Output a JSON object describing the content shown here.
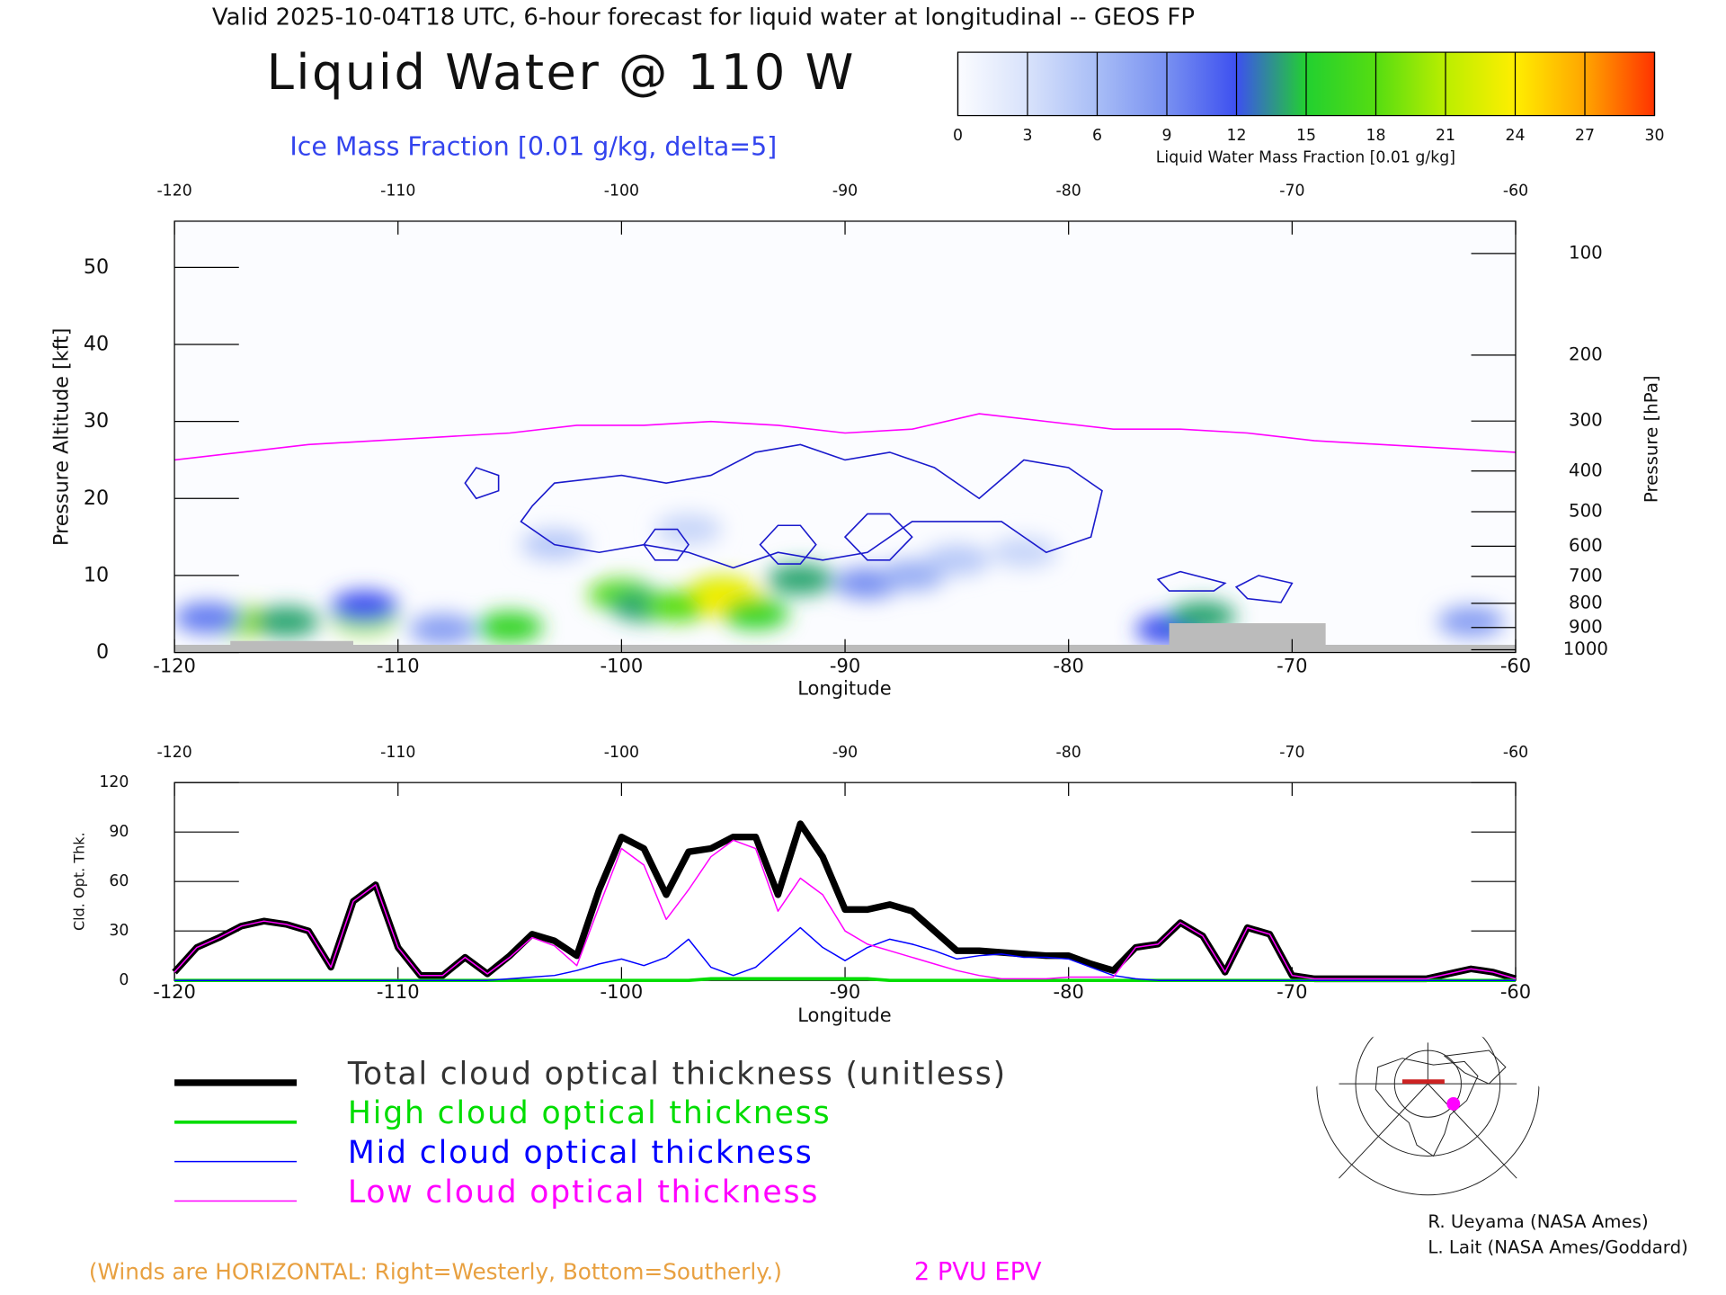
{
  "header": {
    "title": "Valid 2025-10-04T18 UTC, 6-hour forecast for liquid water at longitudinal -- GEOS FP"
  },
  "chart_data": [
    {
      "type": "cross-section",
      "title": "Liquid Water @ 110 W",
      "subtitle": "Ice Mass Fraction [0.01 g/kg, delta=5]",
      "xlabel": "Longitude",
      "ylabel": "Pressure Altitude [kft]",
      "y2label": "Pressure [hPa]",
      "xlim": [
        -120,
        -60
      ],
      "xticks": [
        -120,
        -110,
        -100,
        -90,
        -80,
        -70,
        -60
      ],
      "ylim": [
        0,
        56
      ],
      "yticks": [
        0,
        10,
        20,
        30,
        40,
        50
      ],
      "y2scale": "pressure-altitude",
      "y2ticks": [
        100,
        200,
        300,
        400,
        500,
        600,
        700,
        800,
        900,
        1000
      ],
      "colorbar": {
        "label": "Liquid Water Mass Fraction [0.01 g/kg]",
        "ticks": [
          0,
          3,
          6,
          9,
          12,
          15,
          18,
          21,
          24,
          27,
          30
        ],
        "colors": [
          "#fbfcff",
          "#d8e2fb",
          "#a8bdf6",
          "#7890f1",
          "#3d50f0",
          "#22d030",
          "#55dd11",
          "#bbee00",
          "#ffee00",
          "#ffa500",
          "#ff3300"
        ]
      },
      "liquid_water": {
        "x": [
          -117,
          -115,
          -118.5,
          -111.5,
          -111.5,
          -105,
          -100,
          -99,
          -97.5,
          -95.5,
          -95,
          -94,
          -92,
          -89,
          -87,
          -85,
          -82,
          -75.5,
          -74,
          -62,
          -103,
          -97,
          -108
        ],
        "y": [
          4,
          4,
          4.5,
          4.5,
          6,
          3.3,
          7.5,
          6,
          6,
          8,
          6.5,
          5,
          9.5,
          9,
          10,
          12,
          13,
          3,
          4.7,
          4,
          14,
          16,
          3
        ],
        "values": [
          20,
          14,
          10,
          20,
          12,
          16,
          18,
          14,
          18,
          22,
          24,
          16,
          14,
          9,
          7,
          5,
          4,
          12,
          14,
          8,
          5,
          4,
          8
        ]
      },
      "ice_contours": {
        "level": 5,
        "color": "#1a1acc",
        "lines": [
          {
            "x": [
              -104,
              -103,
              -100,
              -98,
              -96,
              -94,
              -92,
              -90,
              -88,
              -86,
              -84,
              -82,
              -80,
              -78.5,
              -79,
              -81,
              -83,
              -85,
              -87,
              -89,
              -91,
              -93,
              -95,
              -97,
              -99,
              -101,
              -103,
              -104.5
            ],
            "y": [
              19,
              22,
              23,
              22,
              23,
              26,
              27,
              25,
              26,
              24,
              20,
              25,
              24,
              21,
              15,
              13,
              17,
              17,
              17,
              13,
              12,
              13,
              11,
              13,
              14,
              13,
              14,
              17
            ]
          },
          {
            "x": [
              -99,
              -98.5,
              -97.5,
              -97,
              -97.5,
              -98.5
            ],
            "y": [
              14,
              16,
              16,
              14,
              12,
              12
            ]
          },
          {
            "x": [
              -93.8,
              -93,
              -92,
              -91.3,
              -92,
              -93
            ],
            "y": [
              14,
              16.5,
              16.5,
              14,
              11.5,
              11.5
            ]
          },
          {
            "x": [
              -90,
              -89,
              -88,
              -87,
              -88,
              -89
            ],
            "y": [
              15,
              18,
              18,
              15,
              12,
              12
            ]
          },
          {
            "x": [
              -107,
              -106.5,
              -105.5,
              -105.5,
              -106.5
            ],
            "y": [
              22,
              24,
              23,
              21,
              20
            ]
          },
          {
            "x": [
              -76,
              -75,
              -73,
              -73.5,
              -75.5
            ],
            "y": [
              9.5,
              10.5,
              9,
              8,
              8
            ]
          },
          {
            "x": [
              -72.5,
              -71.5,
              -70,
              -70.5,
              -72
            ],
            "y": [
              8.5,
              10,
              9,
              6.5,
              7
            ]
          }
        ]
      },
      "terrain": {
        "color": "#bbbbbb",
        "x": [
          -120,
          -117.5,
          -117.5,
          -112,
          -112,
          -75.5,
          -75.5,
          -68.5,
          -68.5,
          -60
        ],
        "y": [
          1,
          1,
          1.5,
          1.5,
          1,
          1,
          3.8,
          3.8,
          1,
          1
        ]
      },
      "series": [
        {
          "name": "2 PVU EPV",
          "color": "#ff00ff",
          "x": [
            -120,
            -117,
            -114,
            -111,
            -108,
            -105,
            -102,
            -99,
            -96,
            -93,
            -90,
            -87,
            -84,
            -81,
            -78,
            -75,
            -72,
            -69,
            -66,
            -63,
            -60
          ],
          "values": [
            25,
            26,
            27,
            27.5,
            28,
            28.5,
            29.5,
            29.5,
            30,
            29.5,
            28.5,
            29,
            31,
            30,
            29,
            29,
            28.5,
            27.5,
            27,
            26.5,
            26
          ]
        }
      ],
      "note": "(Winds are HORIZONTAL: Right=Westerly, Bottom=Southerly.)"
    },
    {
      "type": "line",
      "xlabel": "Longitude",
      "ylabel": "Cld. Opt. Thk.",
      "xlim": [
        -120,
        -60
      ],
      "xticks": [
        -120,
        -110,
        -100,
        -90,
        -80,
        -70,
        -60
      ],
      "ylim": [
        0,
        120
      ],
      "yticks": [
        0,
        30,
        60,
        90,
        120
      ],
      "x": [
        -120,
        -119,
        -118,
        -117,
        -116,
        -115,
        -114,
        -113,
        -112,
        -111,
        -110,
        -109,
        -108,
        -107,
        -106,
        -105,
        -104,
        -103,
        -102,
        -101,
        -100,
        -99,
        -98,
        -97,
        -96,
        -95,
        -94,
        -93,
        -92,
        -91,
        -90,
        -89,
        -88,
        -87,
        -86,
        -85,
        -84,
        -83,
        -82,
        -81,
        -80,
        -79,
        -78,
        -77,
        -76,
        -75,
        -74,
        -73,
        -72,
        -71,
        -70,
        -69,
        -68,
        -67,
        -66,
        -65,
        -64,
        -63,
        -62,
        -61,
        -60
      ],
      "series": [
        {
          "name": "Total cloud optical thickness (unitless)",
          "color": "#000000",
          "width": 6,
          "values": [
            5,
            20,
            26,
            33,
            36,
            34,
            30,
            8,
            48,
            58,
            20,
            3,
            3,
            14,
            4,
            15,
            28,
            24,
            15,
            55,
            87,
            80,
            52,
            78,
            80,
            87,
            87,
            52,
            95,
            75,
            43,
            43,
            46,
            42,
            30,
            18,
            18,
            17,
            16,
            15,
            15,
            10,
            6,
            20,
            22,
            35,
            27,
            5,
            32,
            28,
            3,
            1,
            1,
            1,
            1,
            1,
            1,
            4,
            7,
            5,
            1
          ]
        },
        {
          "name": "High cloud optical thickness",
          "color": "#00dd00",
          "width": 3,
          "values": [
            0,
            0,
            0,
            0,
            0,
            0,
            0,
            0,
            0,
            0,
            0,
            0,
            0,
            0,
            0,
            0,
            0,
            0,
            0,
            0,
            0,
            0,
            0,
            0,
            1,
            1,
            1,
            1,
            1,
            1,
            1,
            1,
            0,
            0,
            0,
            0,
            0,
            0,
            0,
            0,
            0,
            0,
            0,
            0,
            0,
            0,
            0,
            0,
            0,
            0,
            0,
            0,
            0,
            0,
            0,
            0,
            0,
            0,
            0,
            0,
            0
          ]
        },
        {
          "name": "Mid cloud optical thickness",
          "color": "#0000ff",
          "width": 1.2,
          "values": [
            0,
            0,
            0,
            0,
            0,
            0,
            0,
            0,
            0,
            0,
            0,
            0,
            0,
            0,
            0,
            1,
            2,
            3,
            6,
            10,
            13,
            9,
            14,
            25,
            8,
            3,
            8,
            20,
            32,
            20,
            12,
            20,
            25,
            22,
            18,
            13,
            15,
            16,
            14,
            14,
            13,
            8,
            3,
            1,
            0,
            0,
            0,
            0,
            0,
            0,
            0,
            0,
            0,
            0,
            0,
            0,
            0,
            0,
            0,
            0,
            0
          ]
        },
        {
          "name": "Low cloud optical thickness",
          "color": "#ff00ff",
          "width": 1.2,
          "values": [
            5,
            20,
            26,
            33,
            36,
            34,
            30,
            8,
            48,
            58,
            20,
            3,
            3,
            14,
            4,
            14,
            26,
            21,
            9,
            45,
            80,
            70,
            37,
            55,
            75,
            85,
            80,
            42,
            62,
            52,
            30,
            22,
            18,
            14,
            10,
            6,
            3,
            1,
            1,
            1,
            2,
            2,
            2,
            20,
            22,
            35,
            27,
            5,
            32,
            28,
            3,
            1,
            1,
            1,
            1,
            1,
            1,
            4,
            7,
            5,
            1
          ]
        }
      ]
    }
  ],
  "credits": [
    "R. Ueyama (NASA Ames)",
    "L. Lait (NASA Ames/Goddard)"
  ]
}
